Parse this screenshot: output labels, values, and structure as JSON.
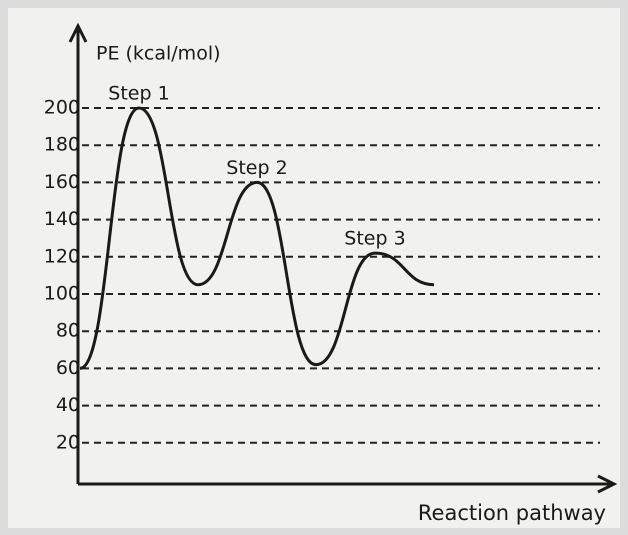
{
  "chart_data": {
    "type": "line",
    "y_axis_label": "PE (kcal/mol)",
    "x_axis_label": "Reaction pathway",
    "categories": [
      null,
      null,
      null,
      null,
      null,
      null,
      null
    ],
    "series": [
      {
        "name": null,
        "color": "#1a1a1a",
        "values": [
          60,
          200,
          105,
          160,
          62,
          122,
          105
        ]
      }
    ],
    "annotations": [
      "Step 1",
      "Step 2",
      "Step 3"
    ],
    "ylim": [
      0,
      200
    ],
    "yticks": [
      20,
      40,
      60,
      80,
      100,
      120,
      140,
      160,
      180,
      200
    ],
    "grid": true
  }
}
